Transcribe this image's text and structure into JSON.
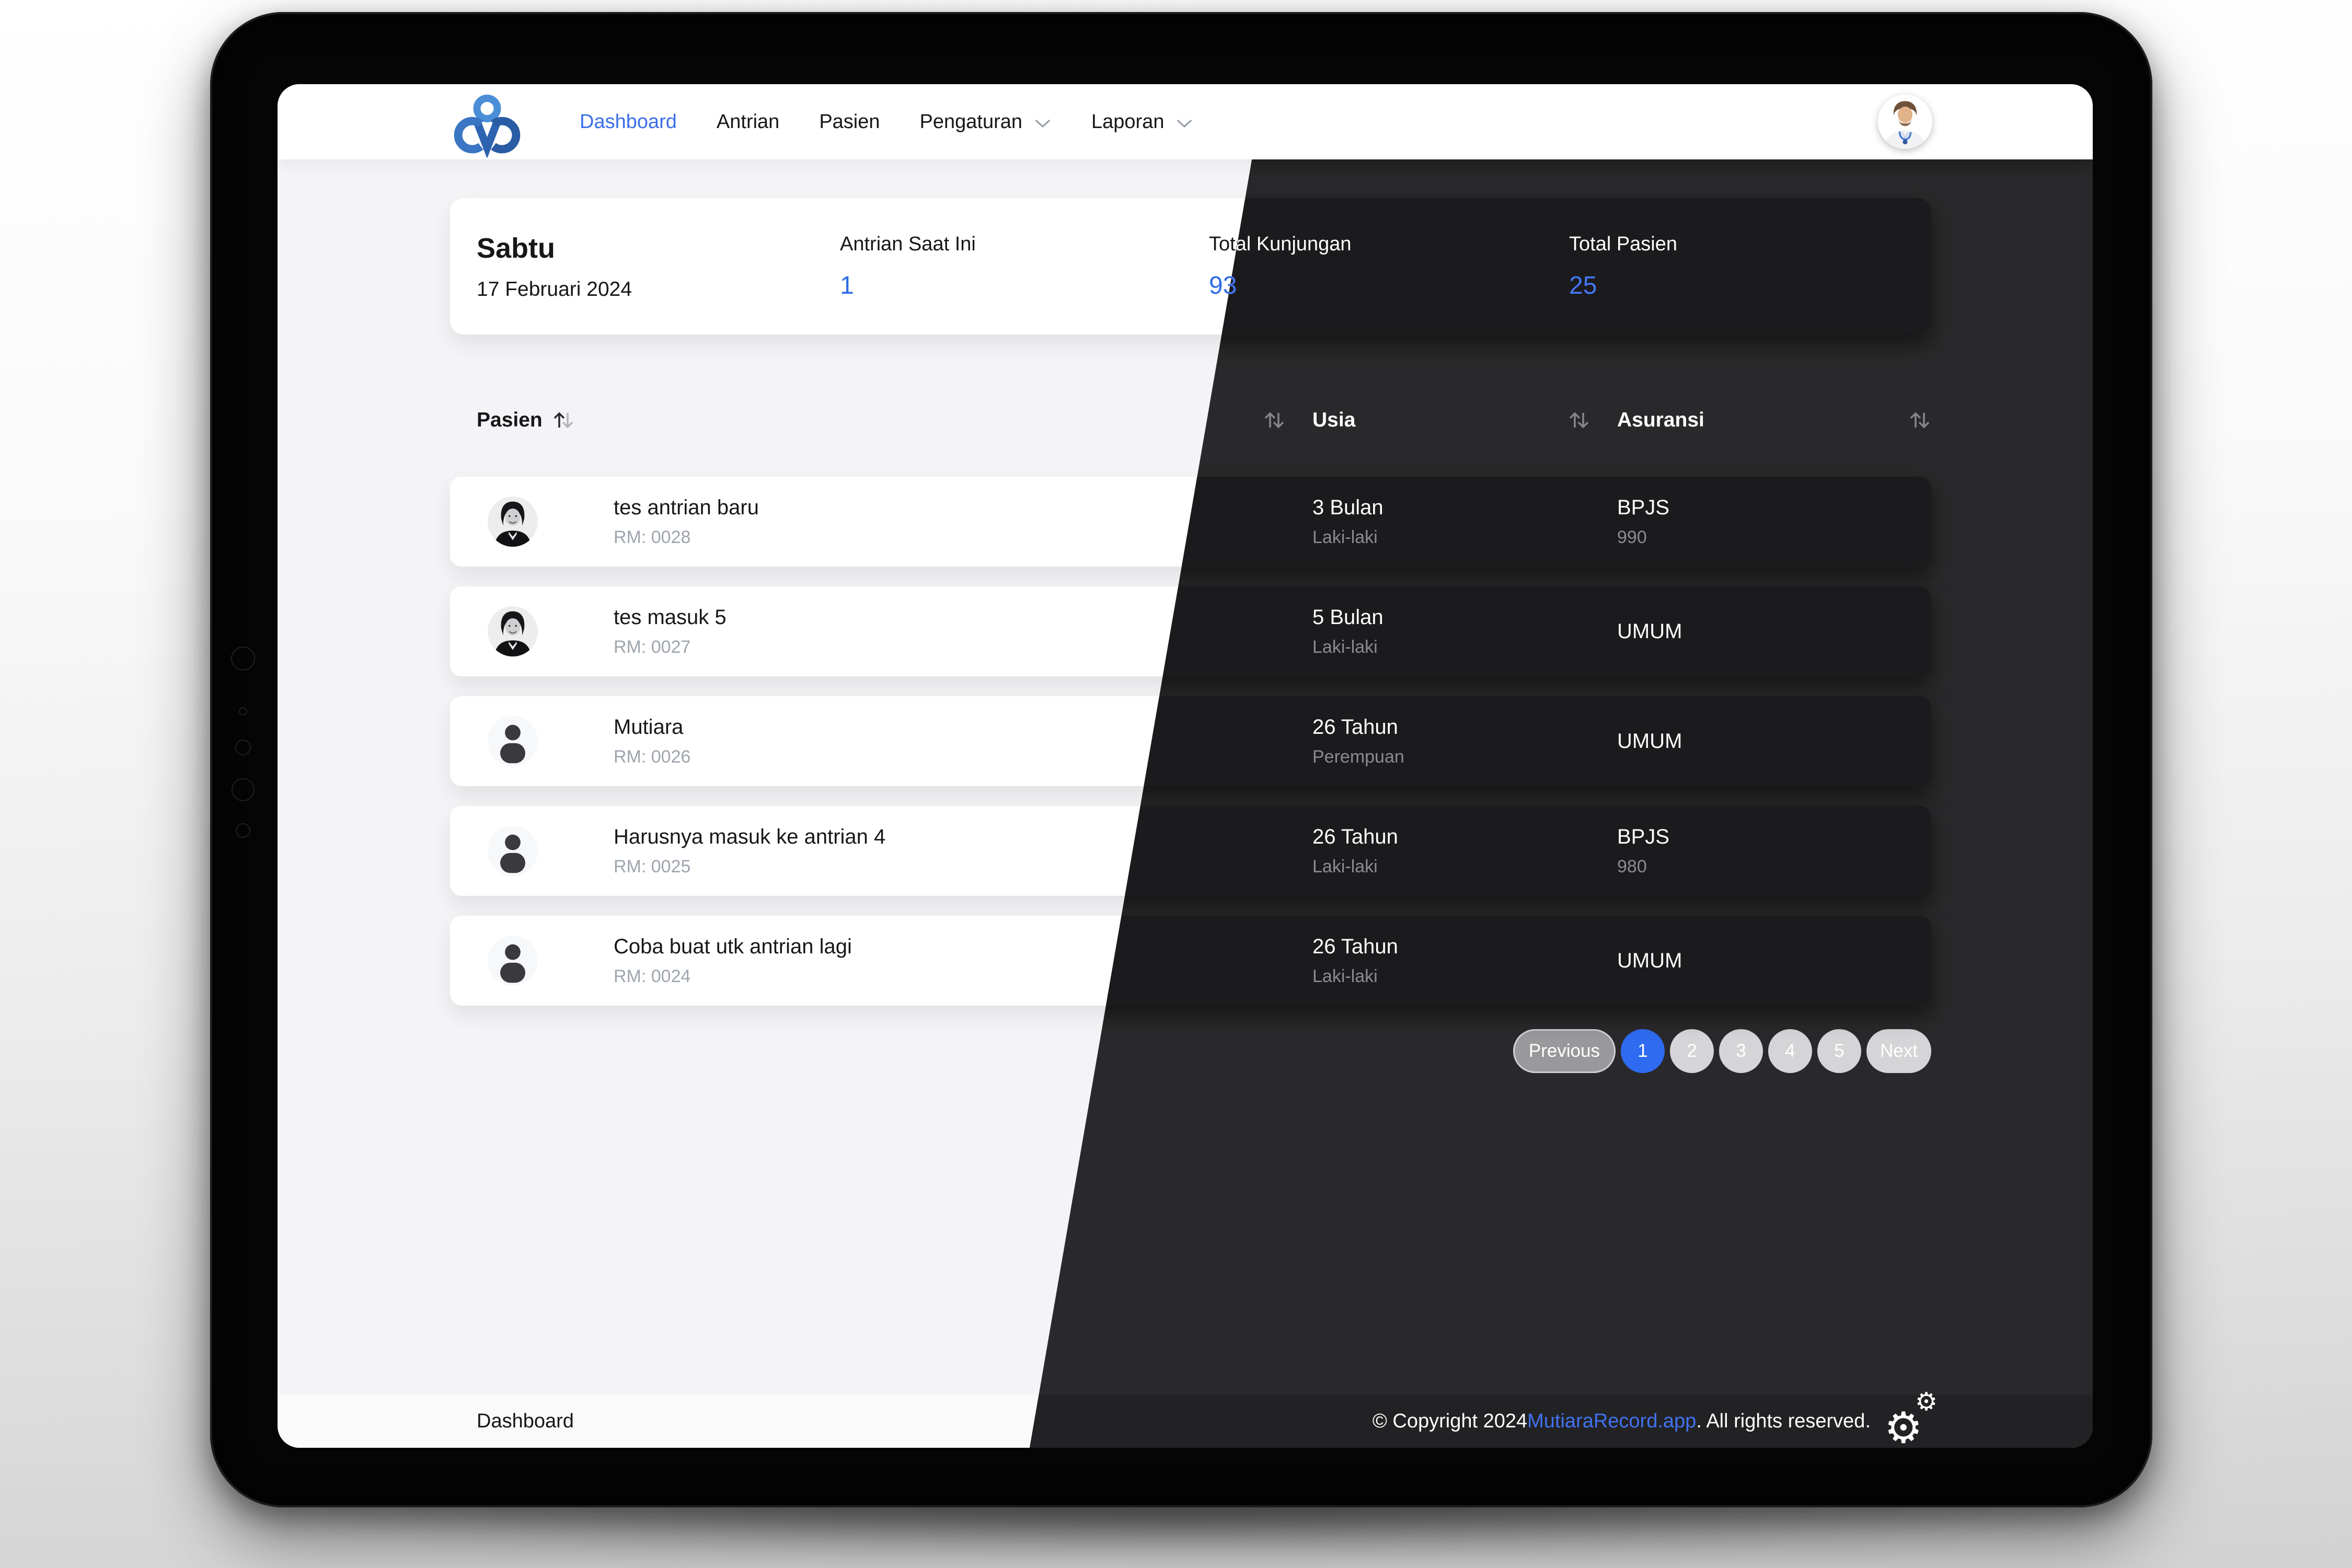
{
  "brand": {
    "name": "MutiaraRecord",
    "logo": "cloud-medical-logo"
  },
  "navbar": {
    "items": [
      {
        "label": "Dashboard",
        "active": true,
        "has_dropdown": false
      },
      {
        "label": "Antrian",
        "active": false,
        "has_dropdown": false
      },
      {
        "label": "Pasien",
        "active": false,
        "has_dropdown": false
      },
      {
        "label": "Pengaturan",
        "active": false,
        "has_dropdown": true
      },
      {
        "label": "Laporan",
        "active": false,
        "has_dropdown": true
      }
    ],
    "avatar": "doctor-profile-photo"
  },
  "stats": {
    "day": "Sabtu",
    "date": "17 Februari 2024",
    "cards": [
      {
        "label": "Antrian Saat Ini",
        "value": "1"
      },
      {
        "label": "Total Kunjungan",
        "value": "93"
      },
      {
        "label": "Total Pasien",
        "value": "25"
      }
    ]
  },
  "table": {
    "columns": [
      {
        "label": "Pasien",
        "sorted": "asc"
      },
      {
        "label": "Usia",
        "sorted": "none"
      },
      {
        "label": "Asuransi",
        "sorted": "none"
      }
    ],
    "rows": [
      {
        "name": "tes antrian baru",
        "rm": "RM: 0028",
        "usia": "3 Bulan",
        "gender": "Laki-laki",
        "asuransi": "BPJS",
        "asuransi_no": "990",
        "avatar": "photo"
      },
      {
        "name": "tes masuk 5",
        "rm": "RM: 0027",
        "usia": "5 Bulan",
        "gender": "Laki-laki",
        "asuransi": "UMUM",
        "asuransi_no": "",
        "avatar": "photo"
      },
      {
        "name": "Mutiara",
        "rm": "RM: 0026",
        "usia": "26 Tahun",
        "gender": "Perempuan",
        "asuransi": "UMUM",
        "asuransi_no": "",
        "avatar": "generic"
      },
      {
        "name": "Harusnya masuk ke antrian 4",
        "rm": "RM: 0025",
        "usia": "26 Tahun",
        "gender": "Laki-laki",
        "asuransi": "BPJS",
        "asuransi_no": "980",
        "avatar": "generic"
      },
      {
        "name": "Coba buat utk antrian lagi",
        "rm": "RM: 0024",
        "usia": "26 Tahun",
        "gender": "Laki-laki",
        "asuransi": "UMUM",
        "asuransi_no": "",
        "avatar": "generic"
      }
    ]
  },
  "pagination": {
    "previous": "Previous",
    "pages": [
      "1",
      "2",
      "3",
      "4",
      "5"
    ],
    "active_page": "1",
    "next": "Next"
  },
  "footer": {
    "left": "Dashboard",
    "copyright_prefix": "© Copyright 2024 ",
    "brand_link": "MutiaraRecord.app",
    "copyright_suffix": ". All rights reserved."
  },
  "icons": {
    "sort": "sort-arrows-icon",
    "dropdown": "chevron-down-icon",
    "settings": "gear-icon",
    "logo": "cloud-medical-logo-icon"
  },
  "colors": {
    "accent_blue": "#2E6BE5",
    "nav_active_blue": "#3B6FE8",
    "pagination_active_blue": "#2F6BF0",
    "link_blue": "#4272F0",
    "light_bg": "#F4F4F6",
    "dark_bg": "#29292B",
    "light_card": "#FFFFFF",
    "dark_card": "#1B1B1E"
  }
}
